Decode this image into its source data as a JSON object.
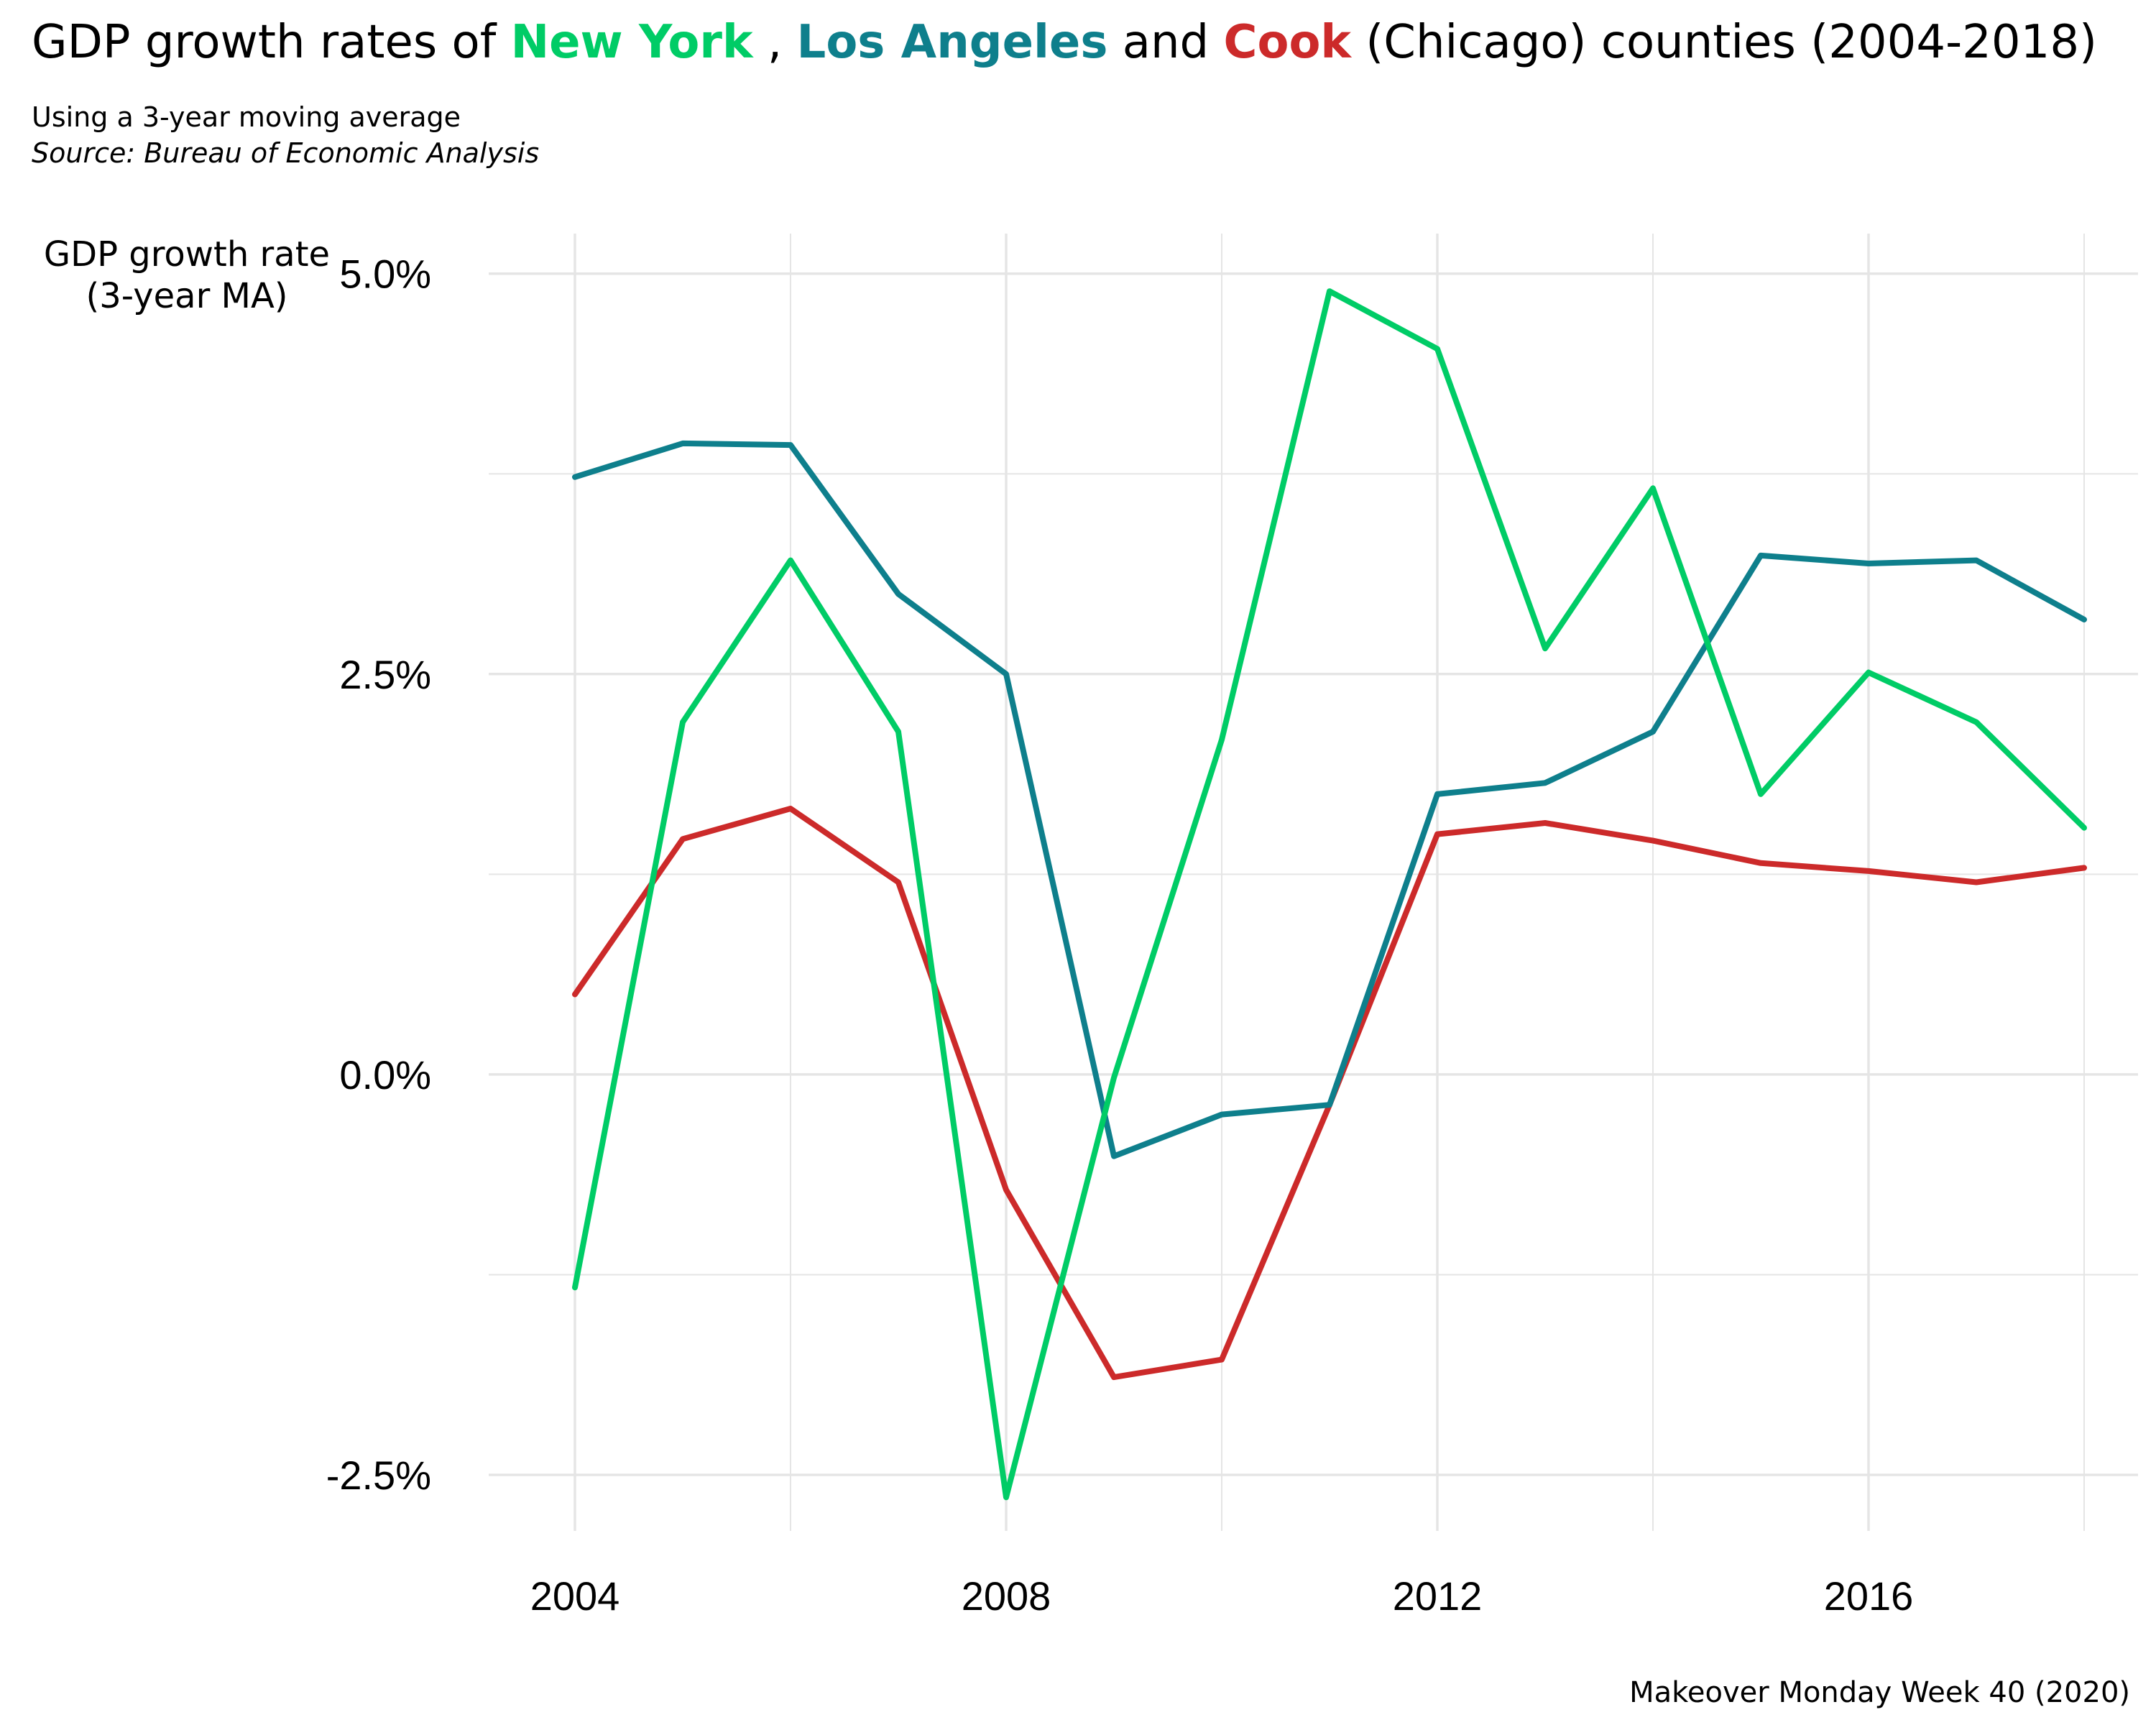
{
  "title": {
    "prefix": "GDP growth rates of ",
    "county1": "New York",
    "sep1": " , ",
    "county2": "Los Angeles",
    "sep2": " and ",
    "county3": "Cook",
    "suffix": " (Chicago) counties (2004-2018)"
  },
  "subtitle": "Using a 3-year moving average",
  "source": "Source: Bureau of Economic Analysis",
  "caption": "Makeover Monday Week 40 (2020)",
  "ylabel_line1": "GDP growth rate",
  "ylabel_line2": "(3-year MA)",
  "colors": {
    "new_york": "#00CC66",
    "los_angeles": "#0E7F8C",
    "cook": "#CC2A2A",
    "grid": "#E5E5E5"
  },
  "chart_data": {
    "type": "line",
    "x": [
      2004,
      2005,
      2006,
      2007,
      2008,
      2009,
      2010,
      2011,
      2012,
      2013,
      2014,
      2015,
      2016,
      2017,
      2018
    ],
    "series": [
      {
        "name": "New York",
        "color": "#00CC66",
        "values": [
          -1.33,
          2.2,
          3.21,
          2.14,
          -2.64,
          -0.02,
          2.09,
          4.89,
          4.53,
          2.66,
          3.66,
          1.75,
          2.51,
          2.2,
          1.54
        ]
      },
      {
        "name": "Los Angeles",
        "color": "#0E7F8C",
        "values": [
          3.73,
          3.94,
          3.93,
          3.0,
          2.5,
          -0.51,
          -0.25,
          -0.19,
          1.75,
          1.82,
          2.14,
          3.24,
          3.19,
          3.21,
          2.84
        ]
      },
      {
        "name": "Cook",
        "color": "#CC2A2A",
        "values": [
          0.5,
          1.47,
          1.66,
          1.2,
          -0.72,
          -1.89,
          -1.78,
          -0.19,
          1.5,
          1.57,
          1.46,
          1.32,
          1.27,
          1.2,
          1.29
        ]
      }
    ],
    "xlim": [
      2003.2,
      2018.5
    ],
    "ylim": [
      -2.85,
      5.25
    ],
    "x_ticks": [
      2004,
      2008,
      2012,
      2016
    ],
    "x_tick_labels": [
      "2004",
      "2008",
      "2012",
      "2016"
    ],
    "y_ticks": [
      -2.5,
      0,
      2.5,
      5
    ],
    "y_tick_labels": [
      "-2.5%",
      "0.0%",
      "2.5%",
      "5.0%"
    ],
    "y_minor_ticks": [
      -1.25,
      1.25,
      3.75
    ],
    "x_minor_ticks": [
      2006,
      2010,
      2014,
      2018
    ],
    "grid": true,
    "legend": "none"
  }
}
